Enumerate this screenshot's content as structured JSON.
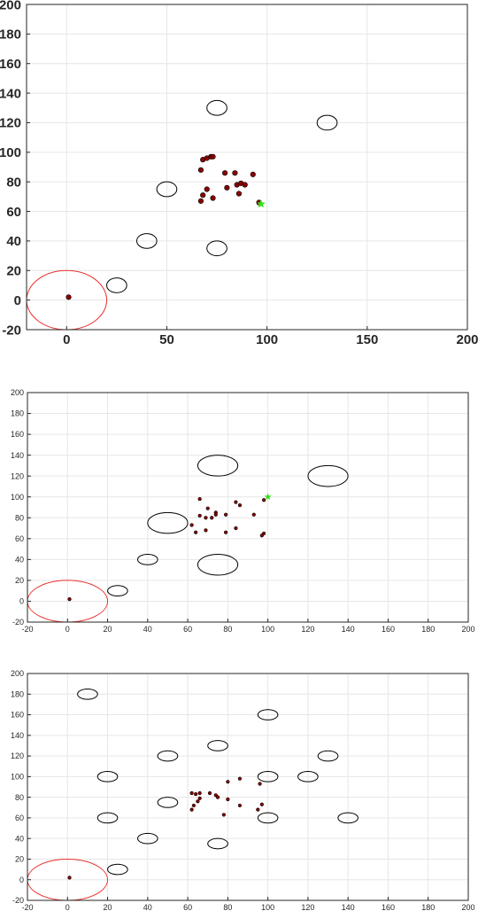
{
  "chart_data": [
    {
      "type": "scatter",
      "xlim": [
        -20,
        200
      ],
      "ylim": [
        -20,
        200
      ],
      "xticks": [
        0,
        50,
        100,
        150,
        200
      ],
      "yticks": [
        -20,
        0,
        20,
        40,
        60,
        80,
        100,
        120,
        140,
        160,
        180,
        200
      ],
      "grid": true,
      "start_region": {
        "cx": 0,
        "cy": 0,
        "rx": 20,
        "ry": 20,
        "color": "#e8302c"
      },
      "obstacles": [
        {
          "cx": 75,
          "cy": 130,
          "rx": 5,
          "ry": 5
        },
        {
          "cx": 130,
          "cy": 120,
          "rx": 5,
          "ry": 5
        },
        {
          "cx": 50,
          "cy": 75,
          "rx": 5,
          "ry": 5
        },
        {
          "cx": 40,
          "cy": 40,
          "rx": 5,
          "ry": 5
        },
        {
          "cx": 75,
          "cy": 35,
          "rx": 5,
          "ry": 5
        },
        {
          "cx": 25,
          "cy": 10,
          "rx": 5,
          "ry": 5
        }
      ],
      "agents": [
        [
          1,
          2
        ],
        [
          68,
          95
        ],
        [
          70,
          96
        ],
        [
          72,
          97
        ],
        [
          73,
          97
        ],
        [
          67,
          88
        ],
        [
          79,
          86
        ],
        [
          84,
          86
        ],
        [
          93,
          85
        ],
        [
          80,
          76
        ],
        [
          85,
          78
        ],
        [
          87,
          79
        ],
        [
          89,
          78
        ],
        [
          86,
          72
        ],
        [
          70,
          75
        ],
        [
          68,
          71
        ],
        [
          73,
          69
        ],
        [
          67,
          67
        ],
        [
          96,
          66
        ]
      ],
      "goal": {
        "x": 97,
        "y": 65,
        "color": "#34e01a"
      }
    },
    {
      "type": "scatter",
      "xlim": [
        -20,
        200
      ],
      "ylim": [
        -20,
        200
      ],
      "xticks": [
        -20,
        0,
        20,
        40,
        60,
        80,
        100,
        120,
        140,
        160,
        180,
        200
      ],
      "yticks": [
        -20,
        0,
        20,
        40,
        60,
        80,
        100,
        120,
        140,
        160,
        180,
        200
      ],
      "grid": true,
      "start_region": {
        "cx": 0,
        "cy": 0,
        "rx": 20,
        "ry": 20,
        "color": "#e8302c"
      },
      "obstacles": [
        {
          "cx": 75,
          "cy": 130,
          "rx": 10,
          "ry": 10
        },
        {
          "cx": 130,
          "cy": 120,
          "rx": 10,
          "ry": 10
        },
        {
          "cx": 50,
          "cy": 75,
          "rx": 10,
          "ry": 10
        },
        {
          "cx": 40,
          "cy": 40,
          "rx": 5,
          "ry": 5
        },
        {
          "cx": 75,
          "cy": 35,
          "rx": 10,
          "ry": 10
        },
        {
          "cx": 25,
          "cy": 10,
          "rx": 5,
          "ry": 5
        }
      ],
      "agents": [
        [
          1,
          2
        ],
        [
          66,
          98
        ],
        [
          84,
          95
        ],
        [
          86,
          92
        ],
        [
          70,
          89
        ],
        [
          74,
          85
        ],
        [
          74,
          83
        ],
        [
          66,
          82
        ],
        [
          79,
          83
        ],
        [
          93,
          83
        ],
        [
          69,
          80
        ],
        [
          72,
          80
        ],
        [
          62,
          73
        ],
        [
          64,
          66
        ],
        [
          69,
          68
        ],
        [
          79,
          66
        ],
        [
          84,
          70
        ],
        [
          98,
          97
        ],
        [
          98,
          65
        ],
        [
          97,
          63
        ]
      ],
      "goal": {
        "x": 100,
        "y": 100,
        "color": "#34e01a"
      }
    },
    {
      "type": "scatter",
      "xlim": [
        -20,
        200
      ],
      "ylim": [
        -20,
        200
      ],
      "xticks": [
        -20,
        0,
        20,
        40,
        60,
        80,
        100,
        120,
        140,
        160,
        180,
        200
      ],
      "yticks": [
        -20,
        0,
        20,
        40,
        60,
        80,
        100,
        120,
        140,
        160,
        180,
        200
      ],
      "grid": true,
      "start_region": {
        "cx": 0,
        "cy": 0,
        "rx": 20,
        "ry": 20,
        "color": "#e8302c"
      },
      "obstacles": [
        {
          "cx": 10,
          "cy": 180,
          "rx": 5,
          "ry": 5
        },
        {
          "cx": 100,
          "cy": 160,
          "rx": 5,
          "ry": 5
        },
        {
          "cx": 75,
          "cy": 130,
          "rx": 5,
          "ry": 5
        },
        {
          "cx": 50,
          "cy": 120,
          "rx": 5,
          "ry": 5
        },
        {
          "cx": 130,
          "cy": 120,
          "rx": 5,
          "ry": 5
        },
        {
          "cx": 20,
          "cy": 100,
          "rx": 5,
          "ry": 5
        },
        {
          "cx": 100,
          "cy": 100,
          "rx": 5,
          "ry": 5
        },
        {
          "cx": 120,
          "cy": 100,
          "rx": 5,
          "ry": 5
        },
        {
          "cx": 50,
          "cy": 75,
          "rx": 5,
          "ry": 5
        },
        {
          "cx": 20,
          "cy": 60,
          "rx": 5,
          "ry": 5
        },
        {
          "cx": 100,
          "cy": 60,
          "rx": 5,
          "ry": 5
        },
        {
          "cx": 140,
          "cy": 60,
          "rx": 5,
          "ry": 5
        },
        {
          "cx": 40,
          "cy": 40,
          "rx": 5,
          "ry": 5
        },
        {
          "cx": 75,
          "cy": 35,
          "rx": 5,
          "ry": 5
        },
        {
          "cx": 25,
          "cy": 10,
          "rx": 5,
          "ry": 5
        }
      ],
      "agents": [
        [
          1,
          2
        ],
        [
          86,
          98
        ],
        [
          80,
          95
        ],
        [
          96,
          93
        ],
        [
          62,
          84
        ],
        [
          64,
          83
        ],
        [
          66,
          84
        ],
        [
          71,
          84
        ],
        [
          74,
          82
        ],
        [
          75,
          80
        ],
        [
          66,
          79
        ],
        [
          80,
          78
        ],
        [
          65,
          76
        ],
        [
          63,
          72
        ],
        [
          62,
          68
        ],
        [
          86,
          72
        ],
        [
          95,
          68
        ],
        [
          97,
          73
        ],
        [
          78,
          63
        ]
      ],
      "goal": null
    }
  ],
  "colors": {
    "agent": "#8b0000",
    "obstacle": "#000000",
    "grid": "#e6e6e6",
    "axis": "#262626"
  }
}
